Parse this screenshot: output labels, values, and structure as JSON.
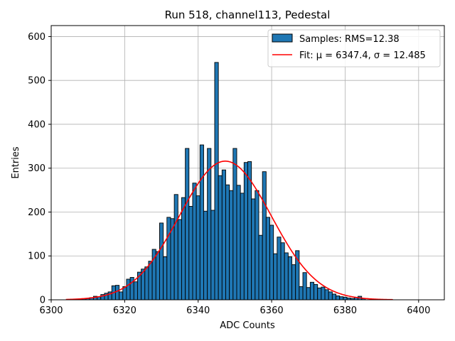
{
  "chart_data": {
    "type": "bar",
    "title": "Run 518, channel113, Pedestal",
    "xlabel": "ADC Counts",
    "ylabel": "Entries",
    "xlim": [
      6300,
      6407
    ],
    "ylim": [
      0,
      625
    ],
    "xticks": [
      6300,
      6320,
      6340,
      6360,
      6380,
      6400
    ],
    "yticks": [
      0,
      100,
      200,
      300,
      400,
      500,
      600
    ],
    "grid": true,
    "legend_position": "top-right",
    "bin_width": 1,
    "colors": {
      "bars": "#1f77b4",
      "bar_edge": "#000000",
      "fit": "#ff0000"
    },
    "series": [
      {
        "name": "Samples: RMS=12.38",
        "type": "histogram",
        "bins": [
          6307,
          6308,
          6309,
          6310,
          6311,
          6312,
          6313,
          6314,
          6315,
          6316,
          6317,
          6318,
          6319,
          6320,
          6321,
          6322,
          6323,
          6324,
          6325,
          6326,
          6327,
          6328,
          6329,
          6330,
          6331,
          6332,
          6333,
          6334,
          6335,
          6336,
          6337,
          6338,
          6339,
          6340,
          6341,
          6342,
          6343,
          6344,
          6345,
          6346,
          6347,
          6348,
          6349,
          6350,
          6351,
          6352,
          6353,
          6354,
          6355,
          6356,
          6357,
          6358,
          6359,
          6360,
          6361,
          6362,
          6363,
          6364,
          6365,
          6366,
          6367,
          6368,
          6369,
          6370,
          6371,
          6372,
          6373,
          6374,
          6375,
          6376,
          6377,
          6378,
          6379,
          6380,
          6381,
          6382,
          6383,
          6384,
          6385
        ],
        "values": [
          1,
          2,
          2,
          3,
          5,
          8,
          7,
          12,
          15,
          18,
          32,
          33,
          18,
          30,
          47,
          51,
          41,
          63,
          70,
          75,
          88,
          115,
          110,
          175,
          98,
          188,
          185,
          240,
          183,
          233,
          345,
          213,
          266,
          237,
          353,
          202,
          345,
          204,
          541,
          283,
          296,
          262,
          249,
          345,
          261,
          243,
          313,
          315,
          230,
          249,
          147,
          292,
          188,
          170,
          105,
          143,
          130,
          107,
          98,
          80,
          112,
          30,
          62,
          28,
          40,
          35,
          27,
          29,
          23,
          18,
          13,
          9,
          7,
          6,
          4,
          3,
          5,
          8,
          3
        ]
      },
      {
        "name": "Fit: μ = 6347.4, σ = 12.485",
        "type": "gaussian",
        "mu": 6347.4,
        "sigma": 12.485,
        "amplitude": 316,
        "x_range": [
          6304,
          6393
        ]
      }
    ]
  },
  "legend": {
    "samples_label": "Samples: RMS=12.38",
    "fit_label": "Fit: μ = 6347.4, σ = 12.485"
  }
}
